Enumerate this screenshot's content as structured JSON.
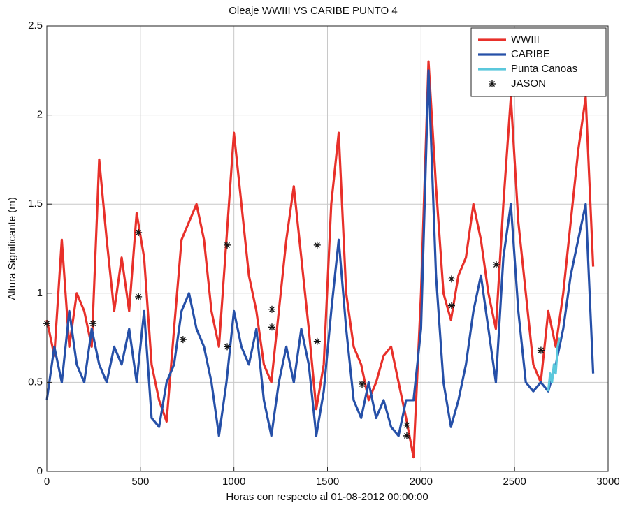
{
  "chart_data": {
    "type": "line",
    "title": "Oleaje WWIII VS CARIBE PUNTO 4",
    "x_label": "Horas con respecto al 01-08-2012 00:00:00",
    "y_label": "Altura Significante (m)",
    "xlim": [
      0,
      3000
    ],
    "xticks": [
      0,
      500,
      1000,
      1500,
      2000,
      2500,
      3000
    ],
    "ylim": [
      0,
      2.5
    ],
    "yticks": [
      0,
      0.5,
      1,
      1.5,
      2,
      2.5
    ],
    "grid": true,
    "legend": "upper right",
    "series": [
      {
        "name": "WWIII",
        "color": "#e8302a",
        "type": "line",
        "x": [
          0,
          40,
          80,
          120,
          160,
          200,
          240,
          280,
          320,
          360,
          400,
          440,
          480,
          520,
          560,
          600,
          640,
          680,
          720,
          760,
          800,
          840,
          880,
          920,
          960,
          1000,
          1040,
          1080,
          1120,
          1160,
          1200,
          1240,
          1280,
          1320,
          1360,
          1400,
          1440,
          1480,
          1520,
          1560,
          1600,
          1640,
          1680,
          1720,
          1760,
          1800,
          1840,
          1880,
          1920,
          1960,
          2000,
          2040,
          2080,
          2120,
          2160,
          2200,
          2240,
          2280,
          2320,
          2360,
          2400,
          2440,
          2480,
          2520,
          2560,
          2600,
          2640,
          2680,
          2720,
          2760,
          2800,
          2840,
          2880,
          2920
        ],
        "values": [
          0.85,
          0.65,
          1.3,
          0.7,
          1.0,
          0.9,
          0.7,
          1.75,
          1.3,
          0.9,
          1.2,
          0.9,
          1.45,
          1.2,
          0.6,
          0.4,
          0.28,
          0.8,
          1.3,
          1.4,
          1.5,
          1.3,
          0.9,
          0.7,
          1.3,
          1.9,
          1.5,
          1.1,
          0.9,
          0.6,
          0.5,
          0.9,
          1.3,
          1.6,
          1.2,
          0.8,
          0.35,
          0.6,
          1.5,
          1.9,
          1.0,
          0.7,
          0.6,
          0.4,
          0.5,
          0.65,
          0.7,
          0.5,
          0.3,
          0.08,
          1.0,
          2.3,
          1.6,
          1.0,
          0.85,
          1.1,
          1.2,
          1.5,
          1.3,
          1.0,
          0.8,
          1.5,
          2.1,
          1.4,
          1.0,
          0.6,
          0.5,
          0.9,
          0.7,
          1.0,
          1.4,
          1.8,
          2.1,
          1.15
        ]
      },
      {
        "name": "CARIBE",
        "color": "#2650a8",
        "type": "line",
        "x": [
          0,
          40,
          80,
          120,
          160,
          200,
          240,
          280,
          320,
          360,
          400,
          440,
          480,
          520,
          560,
          600,
          640,
          680,
          720,
          760,
          800,
          840,
          880,
          920,
          960,
          1000,
          1040,
          1080,
          1120,
          1160,
          1200,
          1240,
          1280,
          1320,
          1360,
          1400,
          1440,
          1480,
          1520,
          1560,
          1600,
          1640,
          1680,
          1720,
          1760,
          1800,
          1840,
          1880,
          1920,
          1960,
          2000,
          2040,
          2080,
          2120,
          2160,
          2200,
          2240,
          2280,
          2320,
          2360,
          2400,
          2440,
          2480,
          2520,
          2560,
          2600,
          2640,
          2680,
          2720,
          2760,
          2800,
          2840,
          2880,
          2920
        ],
        "values": [
          0.4,
          0.7,
          0.5,
          0.9,
          0.6,
          0.5,
          0.8,
          0.6,
          0.5,
          0.7,
          0.6,
          0.8,
          0.5,
          0.9,
          0.3,
          0.25,
          0.5,
          0.6,
          0.9,
          1.0,
          0.8,
          0.7,
          0.5,
          0.2,
          0.5,
          0.9,
          0.7,
          0.6,
          0.8,
          0.4,
          0.2,
          0.5,
          0.7,
          0.5,
          0.8,
          0.6,
          0.2,
          0.45,
          0.9,
          1.3,
          0.8,
          0.4,
          0.3,
          0.5,
          0.3,
          0.4,
          0.25,
          0.2,
          0.4,
          0.4,
          0.8,
          2.25,
          1.1,
          0.5,
          0.25,
          0.4,
          0.6,
          0.9,
          1.1,
          0.8,
          0.5,
          1.2,
          1.5,
          0.9,
          0.5,
          0.45,
          0.5,
          0.45,
          0.6,
          0.8,
          1.1,
          1.3,
          1.5,
          0.55
        ]
      },
      {
        "name": "Punta Canoas",
        "color": "#5bc8dc",
        "type": "line",
        "x": [
          2680,
          2690,
          2700,
          2710,
          2720,
          2730,
          2740
        ],
        "values": [
          0.45,
          0.55,
          0.5,
          0.6,
          0.55,
          0.7,
          0.75
        ]
      },
      {
        "name": "JASON",
        "color": "#111111",
        "type": "scatter",
        "x": [
          0,
          247,
          490,
          490,
          728,
          964,
          964,
          1203,
          1203,
          1445,
          1445,
          1685,
          1924,
          1924,
          2163,
          2163,
          2402,
          2641
        ],
        "values": [
          0.83,
          0.83,
          1.34,
          0.98,
          0.74,
          1.27,
          0.7,
          0.91,
          0.81,
          1.27,
          0.73,
          0.49,
          0.26,
          0.2,
          1.08,
          0.93,
          1.16,
          0.68
        ]
      }
    ]
  }
}
